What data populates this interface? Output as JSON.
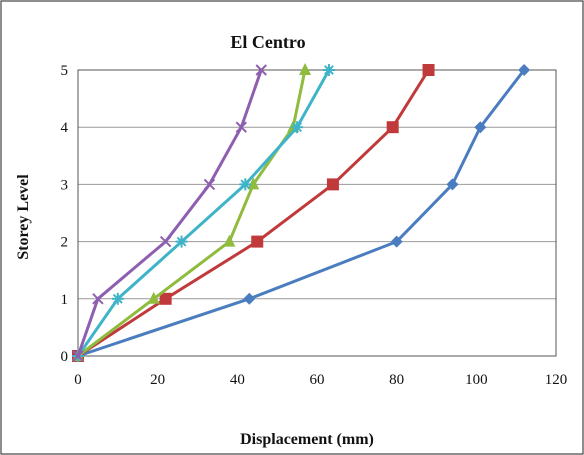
{
  "chart_data": {
    "type": "line",
    "title": "El Centro",
    "xlabel": "Displacement (mm)",
    "ylabel": "Storey Level",
    "xlim": [
      0,
      120
    ],
    "ylim": [
      0,
      5
    ],
    "x_ticks": [
      "0",
      "20",
      "40",
      "60",
      "80",
      "100",
      "120"
    ],
    "y_ticks": [
      "0",
      "1",
      "2",
      "3",
      "4",
      "5"
    ],
    "grid": "horizontal",
    "legend": "none",
    "series": [
      {
        "color": "#4a7dbf",
        "marker": "diamond",
        "points": [
          [
            0,
            0
          ],
          [
            43,
            1
          ],
          [
            80,
            2
          ],
          [
            94,
            3
          ],
          [
            101,
            4
          ],
          [
            112,
            5
          ]
        ]
      },
      {
        "color": "#c0393b",
        "marker": "square",
        "points": [
          [
            0,
            0
          ],
          [
            22,
            1
          ],
          [
            45,
            2
          ],
          [
            64,
            3
          ],
          [
            79,
            4
          ],
          [
            88,
            5
          ]
        ]
      },
      {
        "color": "#8fbb3e",
        "marker": "triangle",
        "points": [
          [
            0,
            0
          ],
          [
            19,
            1
          ],
          [
            38,
            2
          ],
          [
            44,
            3
          ],
          [
            54,
            4
          ],
          [
            57,
            5
          ]
        ]
      },
      {
        "color": "#3fb3c8",
        "marker": "asterisk",
        "points": [
          [
            0,
            0
          ],
          [
            10,
            1
          ],
          [
            26,
            2
          ],
          [
            42,
            3
          ],
          [
            55,
            4
          ],
          [
            63,
            5
          ]
        ]
      },
      {
        "color": "#8e5fb0",
        "marker": "x",
        "points": [
          [
            0,
            0
          ],
          [
            5,
            1
          ],
          [
            22,
            2
          ],
          [
            33,
            3
          ],
          [
            41,
            4
          ],
          [
            46,
            5
          ]
        ]
      }
    ]
  }
}
